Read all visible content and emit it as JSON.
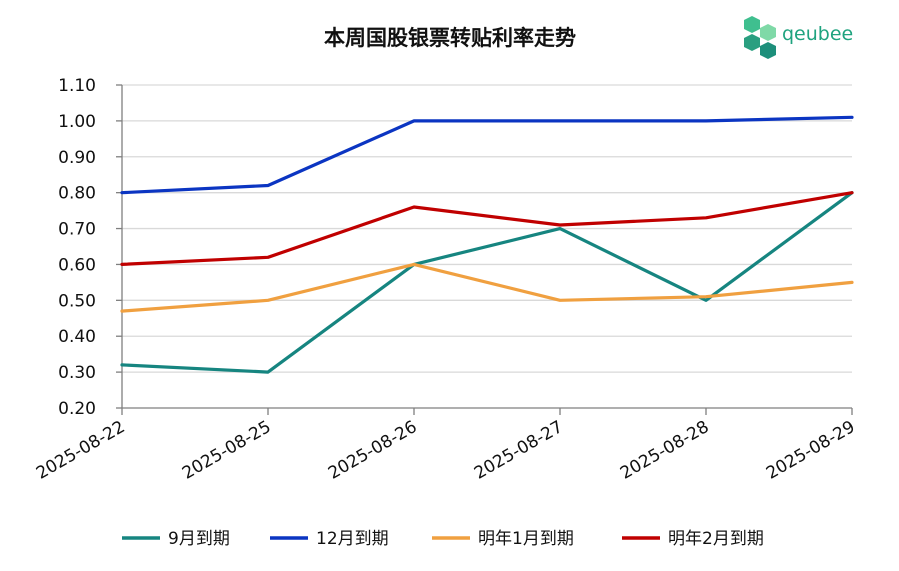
{
  "logo": {
    "text": "qeubee",
    "color": "#1fa37f"
  },
  "chart_data": {
    "type": "line",
    "title": "本周国股银票转贴利率走势",
    "xlabel": "",
    "ylabel": "",
    "categories": [
      "2025-08-22",
      "2025-08-25",
      "2025-08-26",
      "2025-08-27",
      "2025-08-28",
      "2025-08-29"
    ],
    "ylim": [
      0.2,
      1.1
    ],
    "yticks": [
      "1.10",
      "1.00",
      "0.90",
      "0.80",
      "0.70",
      "0.60",
      "0.50",
      "0.40",
      "0.30",
      "0.20"
    ],
    "grid": true,
    "legend_position": "bottom",
    "series": [
      {
        "name": "9月到期",
        "color": "#168580",
        "values": [
          0.32,
          0.3,
          0.6,
          0.7,
          0.5,
          0.8
        ]
      },
      {
        "name": "12月到期",
        "color": "#0b35c2",
        "values": [
          0.8,
          0.82,
          1.0,
          1.0,
          1.0,
          1.01
        ]
      },
      {
        "name": "明年1月到期",
        "color": "#f0a040",
        "values": [
          0.47,
          0.5,
          0.6,
          0.5,
          0.51,
          0.55
        ]
      },
      {
        "name": "明年2月到期",
        "color": "#c00000",
        "values": [
          0.6,
          0.62,
          0.76,
          0.71,
          0.73,
          0.8
        ]
      }
    ]
  }
}
